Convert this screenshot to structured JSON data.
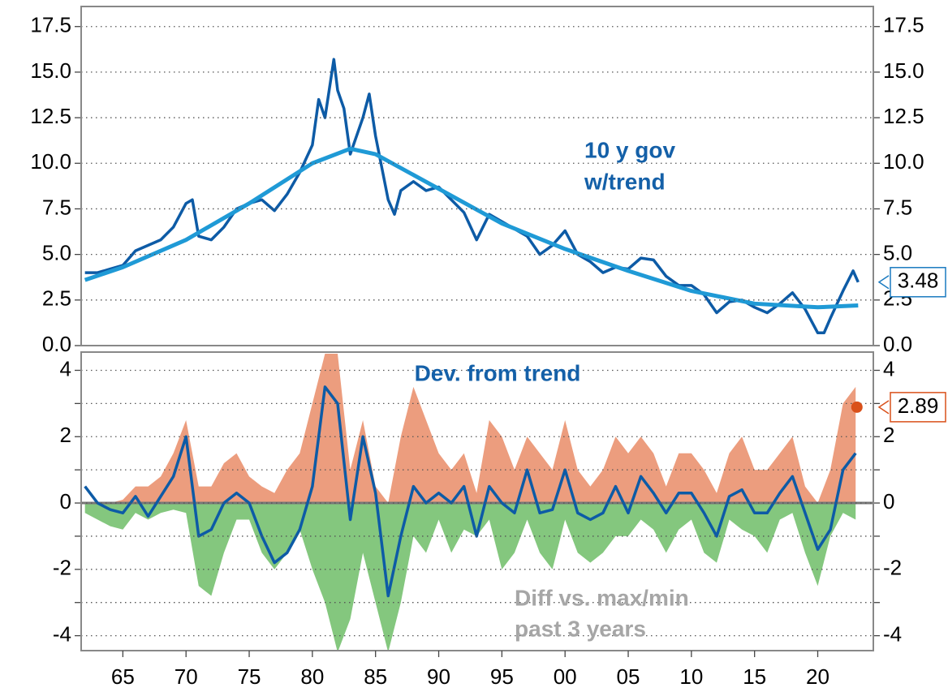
{
  "chart_data": [
    {
      "type": "line",
      "xlim": [
        1961.7,
        2024.4
      ],
      "ylim": [
        0,
        18.6
      ],
      "yticks": [
        {
          "value": 0,
          "label": "0.0"
        },
        2.5,
        {
          "value": 5,
          "label": "5.0"
        },
        7.5,
        {
          "value": 10,
          "label": "10.0"
        },
        12.5,
        {
          "value": 15,
          "label": "15.0"
        },
        17.5
      ],
      "grid": true,
      "annotation_lines": [
        "10  y gov",
        "w/trend"
      ],
      "annotation_color": "#1460a8",
      "series": [
        {
          "color": "#0d5ba6",
          "x": [
            1962,
            1963,
            1964,
            1965,
            1966,
            1967,
            1968,
            1969,
            1970,
            1970.5,
            1971,
            1972,
            1973,
            1974,
            1975,
            1976,
            1977,
            1978,
            1979,
            1980,
            1980.5,
            1981,
            1981.7,
            1982,
            1982.5,
            1983,
            1984,
            1984.5,
            1985,
            1986,
            1986.5,
            1987,
            1988,
            1989,
            1990,
            1991,
            1992,
            1993,
            1994,
            1995,
            1996,
            1997,
            1998,
            1999,
            2000,
            2001,
            2002,
            2003,
            2004,
            2005,
            2006,
            2007,
            2008,
            2009,
            2010,
            2011,
            2012,
            2013,
            2014,
            2015,
            2016,
            2017,
            2018,
            2019,
            2020,
            2020.5,
            2021,
            2022,
            2022.8,
            2023.2
          ],
          "values": [
            4.0,
            4.0,
            4.2,
            4.4,
            5.2,
            5.5,
            5.8,
            6.5,
            7.8,
            8.0,
            6.0,
            5.8,
            6.5,
            7.5,
            7.8,
            8.0,
            7.4,
            8.3,
            9.5,
            11.0,
            13.5,
            12.5,
            15.7,
            14.0,
            13.0,
            10.5,
            12.5,
            13.8,
            11.5,
            8.0,
            7.2,
            8.5,
            9.0,
            8.5,
            8.7,
            8.0,
            7.3,
            5.8,
            7.2,
            6.8,
            6.4,
            6.0,
            5.0,
            5.5,
            6.3,
            5.0,
            4.6,
            4.0,
            4.3,
            4.2,
            4.8,
            4.7,
            3.8,
            3.3,
            3.3,
            2.8,
            1.8,
            2.4,
            2.5,
            2.1,
            1.8,
            2.3,
            2.9,
            2.0,
            0.7,
            0.7,
            1.5,
            3.0,
            4.1,
            3.48
          ]
        },
        {
          "color": "#1f9ad6",
          "x": [
            1962,
            1965,
            1970,
            1975,
            1980,
            1983,
            1985,
            1990,
            1995,
            2000,
            2005,
            2010,
            2015,
            2020,
            2023.2
          ],
          "values": [
            3.6,
            4.3,
            5.8,
            7.8,
            10.0,
            10.8,
            10.5,
            8.6,
            6.7,
            5.3,
            4.1,
            3.0,
            2.3,
            2.1,
            2.2
          ]
        }
      ]
    },
    {
      "type": "line",
      "xlim": [
        1961.7,
        2024.4
      ],
      "ylim": [
        -4.45,
        4.55
      ],
      "yticks": [
        -4,
        -2,
        0,
        2,
        4
      ],
      "minor_yticks": [
        -3,
        -1,
        1,
        3
      ],
      "grid": true,
      "xticks": [
        {
          "value": 1965,
          "label": "65"
        },
        {
          "value": 1970,
          "label": "70"
        },
        {
          "value": 1975,
          "label": "75"
        },
        {
          "value": 1980,
          "label": "80"
        },
        {
          "value": 1985,
          "label": "85"
        },
        {
          "value": 1990,
          "label": "90"
        },
        {
          "value": 1995,
          "label": "95"
        },
        {
          "value": 2000,
          "label": "00"
        },
        {
          "value": 2005,
          "label": "05"
        },
        {
          "value": 2010,
          "label": "10"
        },
        {
          "value": 2015,
          "label": "15"
        },
        {
          "value": 2020,
          "label": "20"
        }
      ],
      "annotation": "Dev. from trend",
      "annotation_color": "#1460a8",
      "area_annotation_lines": [
        "Diff vs. max/min",
        "past 3 years"
      ],
      "area_annotation_color": "#a6a6a6",
      "x": [
        1962,
        1963,
        1964,
        1965,
        1966,
        1967,
        1968,
        1969,
        1970,
        1971,
        1972,
        1973,
        1974,
        1975,
        1976,
        1977,
        1978,
        1979,
        1980,
        1981,
        1982,
        1983,
        1984,
        1985,
        1986,
        1987,
        1988,
        1989,
        1990,
        1991,
        1992,
        1993,
        1994,
        1995,
        1996,
        1997,
        1998,
        1999,
        2000,
        2001,
        2002,
        2003,
        2004,
        2005,
        2006,
        2007,
        2008,
        2009,
        2010,
        2011,
        2012,
        2013,
        2014,
        2015,
        2016,
        2017,
        2018,
        2019,
        2020,
        2021,
        2022,
        2023
      ],
      "areas": [
        {
          "color": "#ec9d7e",
          "values": [
            0,
            0,
            0,
            0.1,
            0.5,
            0.5,
            0.8,
            1.5,
            2.5,
            0.5,
            0.5,
            1.2,
            1.5,
            0.8,
            0.5,
            0.3,
            1.0,
            1.5,
            3.0,
            4.5,
            4.5,
            1.0,
            2.5,
            0.5,
            0,
            2.0,
            3.5,
            2.5,
            1.5,
            1.0,
            1.5,
            0.3,
            2.5,
            2.0,
            1.0,
            2.0,
            1.5,
            1.0,
            2.5,
            1.0,
            0.5,
            1.0,
            2.0,
            1.5,
            2.0,
            1.5,
            0.5,
            1.5,
            1.5,
            1.0,
            0.3,
            1.5,
            2.0,
            1.0,
            1.0,
            1.5,
            2.0,
            0.5,
            0,
            1.0,
            3.0,
            3.5
          ]
        },
        {
          "color": "#84c77e",
          "values": [
            -0.3,
            -0.5,
            -0.7,
            -0.8,
            -0.3,
            -0.5,
            -0.3,
            -0.2,
            -0.3,
            -2.5,
            -2.8,
            -1.5,
            -0.5,
            -0.5,
            -1.5,
            -2.0,
            -1.5,
            -0.8,
            -2.0,
            -3.0,
            -4.5,
            -3.5,
            -1.5,
            -3.0,
            -4.5,
            -3.0,
            -1.0,
            -1.5,
            -0.5,
            -1.5,
            -0.8,
            -1.0,
            -0.5,
            -2.0,
            -1.5,
            -0.5,
            -1.5,
            -2.0,
            -0.5,
            -1.5,
            -1.8,
            -1.5,
            -1.0,
            -1.0,
            -0.5,
            -0.8,
            -1.5,
            -0.8,
            -0.5,
            -1.5,
            -1.8,
            -0.5,
            -0.8,
            -1.0,
            -1.5,
            -0.5,
            -0.3,
            -1.5,
            -2.5,
            -1.0,
            -0.3,
            -0.5
          ]
        }
      ],
      "series": [
        {
          "color": "#0d5ba6",
          "values": [
            0.5,
            0,
            -0.2,
            -0.3,
            0.2,
            -0.4,
            0.2,
            0.8,
            2.0,
            -1.0,
            -0.8,
            0.0,
            0.3,
            0.0,
            -1.0,
            -1.8,
            -1.5,
            -0.8,
            0.5,
            3.5,
            3.0,
            -0.5,
            2.0,
            0.3,
            -2.8,
            -1.0,
            0.5,
            0.0,
            0.3,
            0.0,
            0.5,
            -1.0,
            0.5,
            0.0,
            -0.3,
            1.0,
            -0.3,
            -0.2,
            1.0,
            -0.3,
            -0.5,
            -0.3,
            0.5,
            -0.3,
            0.8,
            0.3,
            -0.3,
            0.3,
            0.3,
            -0.3,
            -1.0,
            0.2,
            0.4,
            -0.3,
            -0.3,
            0.3,
            0.8,
            -0.3,
            -1.4,
            -0.8,
            1.0,
            1.5
          ]
        }
      ],
      "latest_point": {
        "x": 2023.1,
        "value": 2.89,
        "color": "#d9501a"
      }
    }
  ]
}
